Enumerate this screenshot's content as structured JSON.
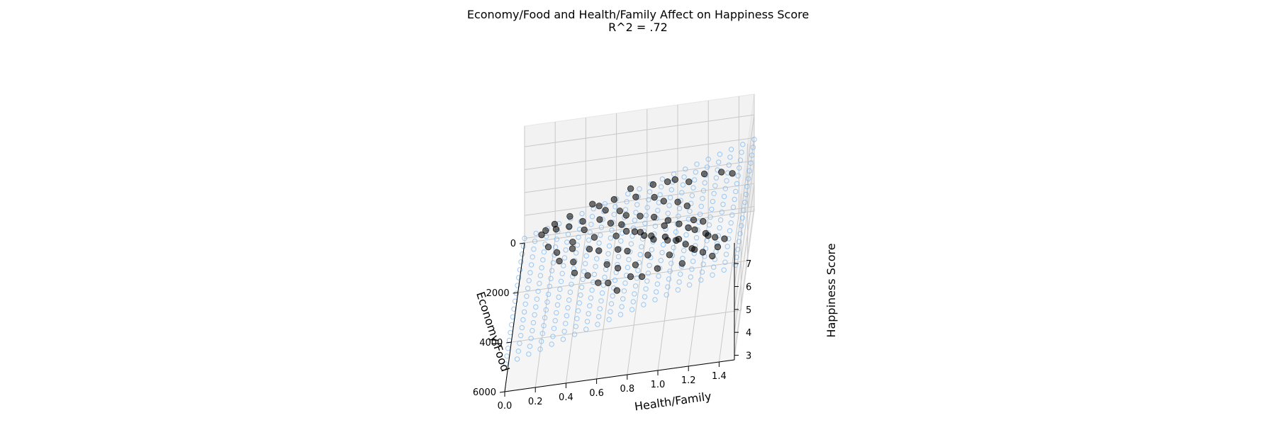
{
  "chart_data": {
    "type": "scatter",
    "projection": "3d",
    "title": "Economy/Food and Health/Family Affect on Happiness Score",
    "subtitle": "R^2 = .72",
    "xlabel": "Economy/Food",
    "ylabel": "Health/Family",
    "zlabel": "Happiness Score",
    "xlim": [
      0,
      6000
    ],
    "ylim": [
      0,
      1.5
    ],
    "zlim": [
      2.8,
      7.9
    ],
    "x_ticks": [
      "0",
      "2000",
      "4000",
      "6000"
    ],
    "y_ticks": [
      "0.0",
      "0.2",
      "0.4",
      "0.6",
      "0.8",
      "1.0",
      "1.2",
      "1.4"
    ],
    "z_ticks": [
      "3",
      "4",
      "5",
      "6",
      "7"
    ],
    "grid": true,
    "fit_plane": {
      "intercept": 3.0,
      "coef_economy": 0.00012,
      "coef_health": 1.95
    },
    "series": [
      {
        "kind": "observed",
        "color": "#000000",
        "marker": "filled-circle",
        "points": [
          [
            420,
            0.12,
            3.5
          ],
          [
            650,
            0.22,
            3.9
          ],
          [
            900,
            0.31,
            4.2
          ],
          [
            1150,
            0.18,
            3.7
          ],
          [
            1400,
            0.42,
            4.5
          ],
          [
            1800,
            0.25,
            4.1
          ],
          [
            2200,
            0.36,
            4.6
          ],
          [
            2600,
            0.48,
            4.9
          ],
          [
            3000,
            0.55,
            5.2
          ],
          [
            3400,
            0.4,
            4.8
          ],
          [
            3800,
            0.62,
            5.4
          ],
          [
            4200,
            0.7,
            5.6
          ],
          [
            4600,
            0.58,
            5.5
          ],
          [
            5000,
            0.8,
            6.0
          ],
          [
            5400,
            0.72,
            5.9
          ],
          [
            300,
            0.45,
            4.4
          ],
          [
            700,
            0.6,
            4.9
          ],
          [
            1100,
            0.75,
            5.3
          ],
          [
            1500,
            0.88,
            5.6
          ],
          [
            1900,
            0.95,
            5.8
          ],
          [
            2300,
            1.05,
            6.1
          ],
          [
            2700,
            1.12,
            6.3
          ],
          [
            3100,
            0.98,
            6.0
          ],
          [
            3500,
            1.18,
            6.5
          ],
          [
            3900,
            1.25,
            6.8
          ],
          [
            4300,
            1.1,
            6.6
          ],
          [
            4700,
            1.3,
            7.0
          ],
          [
            5100,
            1.22,
            6.9
          ],
          [
            5500,
            1.38,
            7.3
          ],
          [
            200,
            0.3,
            3.9
          ],
          [
            500,
            0.85,
            5.1
          ],
          [
            800,
            1.0,
            5.5
          ],
          [
            1200,
            1.2,
            6.0
          ],
          [
            1600,
            1.32,
            6.4
          ],
          [
            2000,
            1.4,
            6.7
          ],
          [
            2400,
            0.65,
            5.1
          ],
          [
            2800,
            0.78,
            5.6
          ],
          [
            3200,
            0.85,
            5.8
          ],
          [
            3600,
            0.92,
            6.0
          ],
          [
            4000,
            1.02,
            6.3
          ],
          [
            4400,
            0.9,
            6.2
          ],
          [
            4800,
            1.05,
            6.5
          ],
          [
            5200,
            0.98,
            6.4
          ],
          [
            5600,
            1.15,
            6.9
          ],
          [
            600,
            0.5,
            4.6
          ],
          [
            1000,
            0.55,
            4.8
          ],
          [
            1300,
            0.65,
            5.0
          ],
          [
            1700,
            0.7,
            5.2
          ],
          [
            2100,
            0.8,
            5.5
          ],
          [
            2500,
            0.9,
            5.8
          ],
          [
            2900,
            1.0,
            6.0
          ],
          [
            3300,
            1.08,
            6.2
          ],
          [
            3700,
            1.15,
            6.4
          ],
          [
            4100,
            1.2,
            6.7
          ],
          [
            4500,
            1.28,
            6.9
          ],
          [
            4900,
            1.35,
            7.1
          ],
          [
            5300,
            1.42,
            7.4
          ],
          [
            350,
            0.7,
            4.9
          ],
          [
            750,
            0.95,
            5.4
          ],
          [
            1250,
            1.1,
            5.8
          ],
          [
            1650,
            0.35,
            4.3
          ],
          [
            2050,
            0.5,
            4.8
          ],
          [
            2450,
            0.28,
            4.4
          ],
          [
            2850,
            0.38,
            4.7
          ],
          [
            3250,
            0.68,
            5.4
          ],
          [
            3650,
            0.75,
            5.7
          ],
          [
            4050,
            0.5,
            5.3
          ],
          [
            4450,
            0.82,
            5.9
          ],
          [
            4850,
            0.65,
            5.7
          ],
          [
            5250,
            0.88,
            6.2
          ],
          [
            150,
            0.2,
            3.6
          ],
          [
            550,
            0.15,
            3.8
          ],
          [
            950,
            0.4,
            4.4
          ],
          [
            1350,
            0.52,
            4.8
          ],
          [
            1750,
            0.6,
            5.0
          ],
          [
            2150,
            0.68,
            5.3
          ],
          [
            2550,
            0.72,
            5.4
          ],
          [
            2950,
            0.82,
            5.7
          ],
          [
            3350,
            0.9,
            5.9
          ],
          [
            3750,
            1.0,
            6.2
          ],
          [
            4150,
            1.08,
            6.4
          ],
          [
            4550,
            1.15,
            6.6
          ],
          [
            4950,
            1.2,
            6.8
          ],
          [
            5350,
            1.28,
            7.0
          ],
          [
            5750,
            1.35,
            7.2
          ]
        ]
      },
      {
        "kind": "fitted-plane",
        "color": "#7fb8f0",
        "marker": "open-circle",
        "grid_x_steps": 16,
        "grid_y_steps": 20
      }
    ]
  }
}
